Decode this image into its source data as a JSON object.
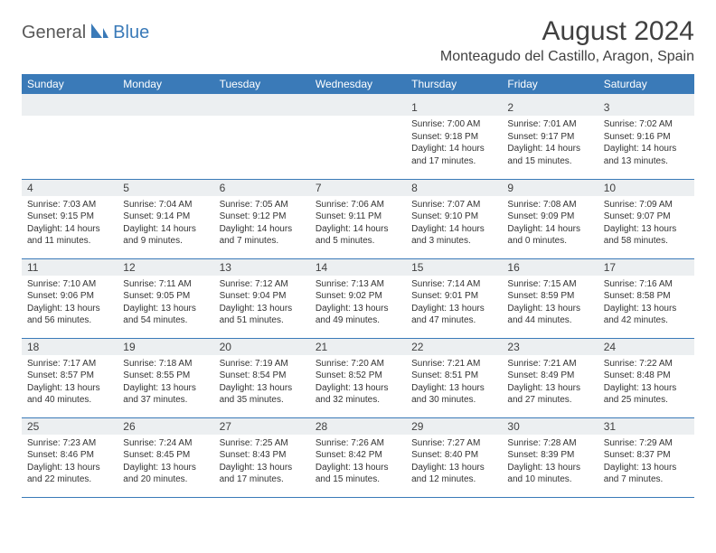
{
  "logo": {
    "general": "General",
    "blue": "Blue"
  },
  "title": {
    "month_year": "August 2024",
    "location": "Monteagudo del Castillo, Aragon, Spain"
  },
  "colors": {
    "header_bg": "#3a7ab8",
    "header_fg": "#ffffff",
    "row_stripe": "#eceff1",
    "divider": "#3a7ab8",
    "text": "#333333"
  },
  "day_names": [
    "Sunday",
    "Monday",
    "Tuesday",
    "Wednesday",
    "Thursday",
    "Friday",
    "Saturday"
  ],
  "weeks": [
    [
      null,
      null,
      null,
      null,
      {
        "n": "1",
        "sr": "7:00 AM",
        "ss": "9:18 PM",
        "dl": "14 hours and 17 minutes."
      },
      {
        "n": "2",
        "sr": "7:01 AM",
        "ss": "9:17 PM",
        "dl": "14 hours and 15 minutes."
      },
      {
        "n": "3",
        "sr": "7:02 AM",
        "ss": "9:16 PM",
        "dl": "14 hours and 13 minutes."
      }
    ],
    [
      {
        "n": "4",
        "sr": "7:03 AM",
        "ss": "9:15 PM",
        "dl": "14 hours and 11 minutes."
      },
      {
        "n": "5",
        "sr": "7:04 AM",
        "ss": "9:14 PM",
        "dl": "14 hours and 9 minutes."
      },
      {
        "n": "6",
        "sr": "7:05 AM",
        "ss": "9:12 PM",
        "dl": "14 hours and 7 minutes."
      },
      {
        "n": "7",
        "sr": "7:06 AM",
        "ss": "9:11 PM",
        "dl": "14 hours and 5 minutes."
      },
      {
        "n": "8",
        "sr": "7:07 AM",
        "ss": "9:10 PM",
        "dl": "14 hours and 3 minutes."
      },
      {
        "n": "9",
        "sr": "7:08 AM",
        "ss": "9:09 PM",
        "dl": "14 hours and 0 minutes."
      },
      {
        "n": "10",
        "sr": "7:09 AM",
        "ss": "9:07 PM",
        "dl": "13 hours and 58 minutes."
      }
    ],
    [
      {
        "n": "11",
        "sr": "7:10 AM",
        "ss": "9:06 PM",
        "dl": "13 hours and 56 minutes."
      },
      {
        "n": "12",
        "sr": "7:11 AM",
        "ss": "9:05 PM",
        "dl": "13 hours and 54 minutes."
      },
      {
        "n": "13",
        "sr": "7:12 AM",
        "ss": "9:04 PM",
        "dl": "13 hours and 51 minutes."
      },
      {
        "n": "14",
        "sr": "7:13 AM",
        "ss": "9:02 PM",
        "dl": "13 hours and 49 minutes."
      },
      {
        "n": "15",
        "sr": "7:14 AM",
        "ss": "9:01 PM",
        "dl": "13 hours and 47 minutes."
      },
      {
        "n": "16",
        "sr": "7:15 AM",
        "ss": "8:59 PM",
        "dl": "13 hours and 44 minutes."
      },
      {
        "n": "17",
        "sr": "7:16 AM",
        "ss": "8:58 PM",
        "dl": "13 hours and 42 minutes."
      }
    ],
    [
      {
        "n": "18",
        "sr": "7:17 AM",
        "ss": "8:57 PM",
        "dl": "13 hours and 40 minutes."
      },
      {
        "n": "19",
        "sr": "7:18 AM",
        "ss": "8:55 PM",
        "dl": "13 hours and 37 minutes."
      },
      {
        "n": "20",
        "sr": "7:19 AM",
        "ss": "8:54 PM",
        "dl": "13 hours and 35 minutes."
      },
      {
        "n": "21",
        "sr": "7:20 AM",
        "ss": "8:52 PM",
        "dl": "13 hours and 32 minutes."
      },
      {
        "n": "22",
        "sr": "7:21 AM",
        "ss": "8:51 PM",
        "dl": "13 hours and 30 minutes."
      },
      {
        "n": "23",
        "sr": "7:21 AM",
        "ss": "8:49 PM",
        "dl": "13 hours and 27 minutes."
      },
      {
        "n": "24",
        "sr": "7:22 AM",
        "ss": "8:48 PM",
        "dl": "13 hours and 25 minutes."
      }
    ],
    [
      {
        "n": "25",
        "sr": "7:23 AM",
        "ss": "8:46 PM",
        "dl": "13 hours and 22 minutes."
      },
      {
        "n": "26",
        "sr": "7:24 AM",
        "ss": "8:45 PM",
        "dl": "13 hours and 20 minutes."
      },
      {
        "n": "27",
        "sr": "7:25 AM",
        "ss": "8:43 PM",
        "dl": "13 hours and 17 minutes."
      },
      {
        "n": "28",
        "sr": "7:26 AM",
        "ss": "8:42 PM",
        "dl": "13 hours and 15 minutes."
      },
      {
        "n": "29",
        "sr": "7:27 AM",
        "ss": "8:40 PM",
        "dl": "13 hours and 12 minutes."
      },
      {
        "n": "30",
        "sr": "7:28 AM",
        "ss": "8:39 PM",
        "dl": "13 hours and 10 minutes."
      },
      {
        "n": "31",
        "sr": "7:29 AM",
        "ss": "8:37 PM",
        "dl": "13 hours and 7 minutes."
      }
    ]
  ],
  "labels": {
    "sunrise": "Sunrise: ",
    "sunset": "Sunset: ",
    "daylight": "Daylight: "
  }
}
